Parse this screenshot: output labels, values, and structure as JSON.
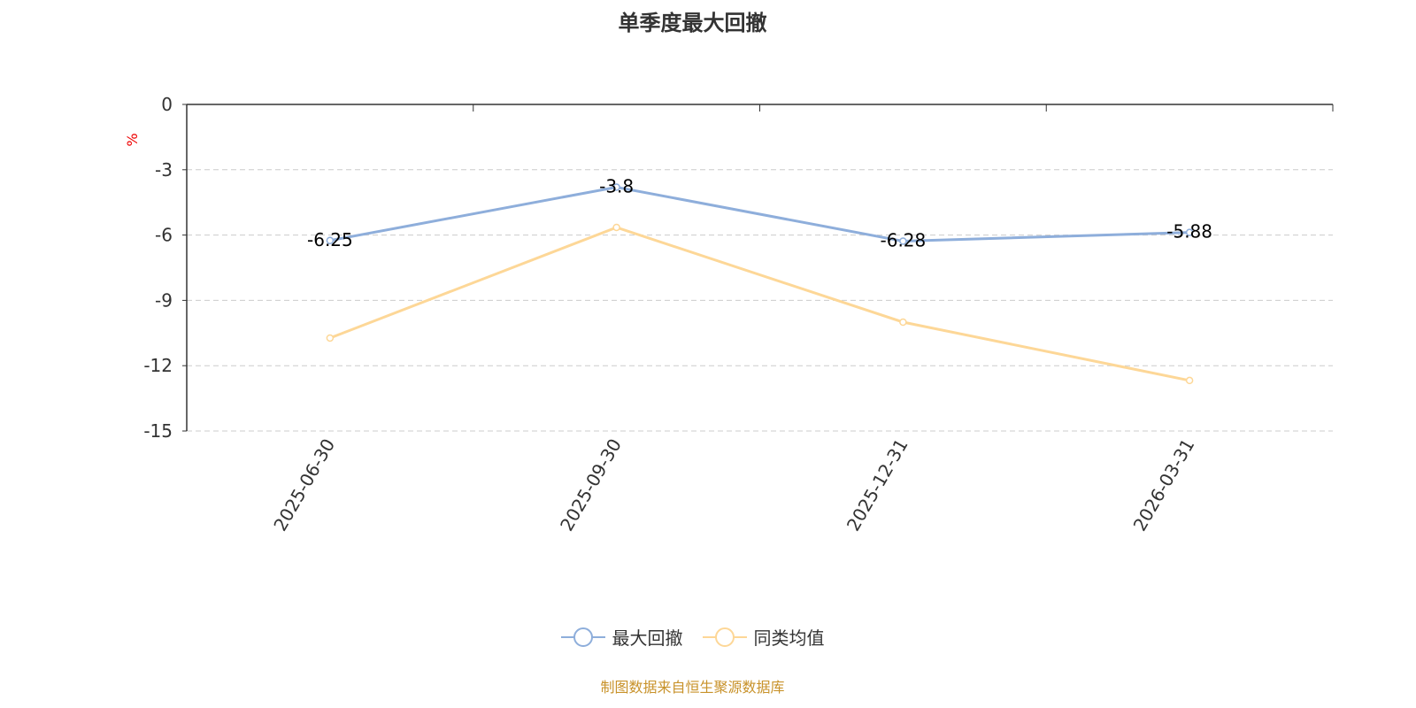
{
  "chart_data": {
    "type": "line",
    "title": "单季度最大回撤",
    "ylabel": "%",
    "categories": [
      "2025-06-30",
      "2025-09-30",
      "2025-12-31",
      "2026-03-31"
    ],
    "ylim": [
      -15,
      0
    ],
    "yticks": [
      0,
      -3,
      -6,
      -9,
      -12,
      -15
    ],
    "grid": true,
    "legend_position": "bottom",
    "series": [
      {
        "name": "最大回撤",
        "values": [
          -6.25,
          -3.8,
          -6.28,
          -5.88
        ],
        "color": "#8eaedb",
        "labels": true
      },
      {
        "name": "同类均值",
        "values": [
          -10.73,
          -5.65,
          -10.0,
          -12.68
        ],
        "color": "#fdd797",
        "labels": false
      }
    ]
  },
  "footer": {
    "source": "制图数据来自恒生聚源数据库"
  }
}
